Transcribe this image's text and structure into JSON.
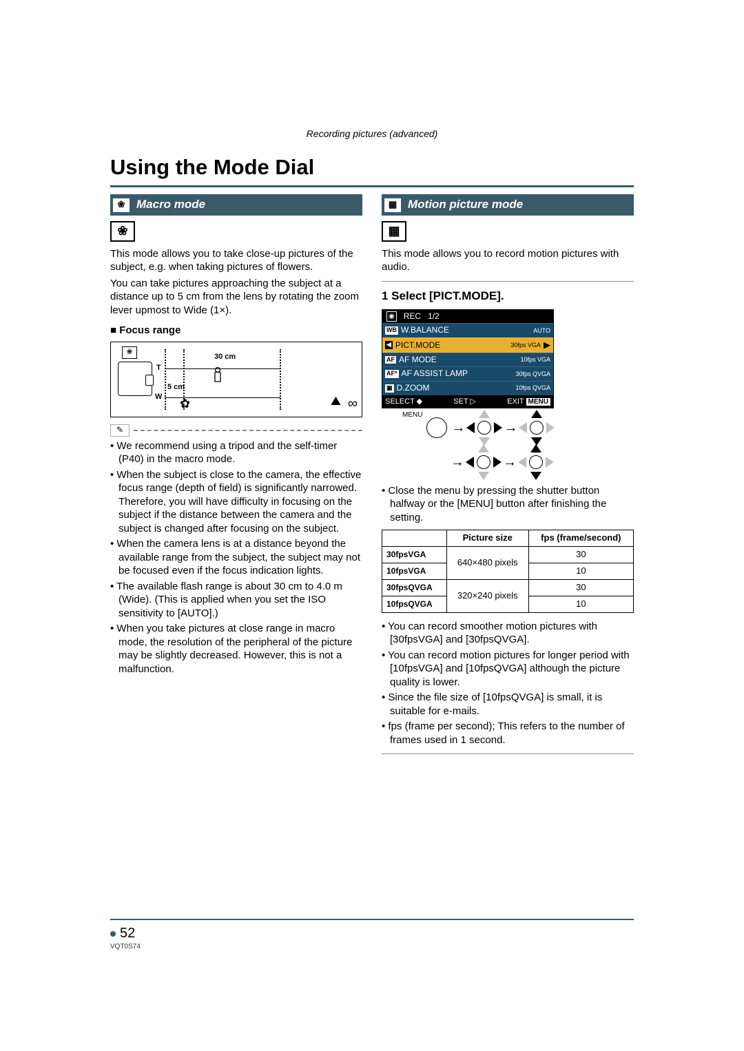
{
  "header_caption": "Recording pictures (advanced)",
  "main_title": "Using the Mode Dial",
  "page_number": "52",
  "doc_id": "VQT0S74",
  "left": {
    "section_title": "Macro mode",
    "bar_icon": "❀",
    "mode_glyph": "❀",
    "intro1": "This mode allows you to take close-up pictures of the subject, e.g. when taking pictures of flowers.",
    "intro2": "You can take pictures approaching the subject at a distance up to 5 cm from the lens by rotating the zoom lever upmost to Wide (1×).",
    "focus_heading": "Focus range",
    "focus_diagram": {
      "label_30cm": "30 cm",
      "label_5cm": "5 cm",
      "label_T": "T",
      "label_W": "W",
      "infinity": "∞"
    },
    "bullets": [
      "We recommend using a tripod and the self-timer (P40) in the macro mode.",
      "When the subject is close to the camera, the effective focus range (depth of field) is significantly narrowed. Therefore, you will have difficulty in focusing on the subject if the distance between the camera and the subject is changed after focusing on the subject.",
      "When the camera lens is at a distance beyond the available range from the subject, the subject may not be focused even if the focus indication lights.",
      "The available flash range is about 30 cm to 4.0 m (Wide). (This is applied when you set the ISO sensitivity to [AUTO].)",
      "When you take pictures at close range in macro mode, the resolution of the peripheral of the picture may be slightly decreased. However, this is not a malfunction."
    ]
  },
  "right": {
    "section_title": "Motion picture mode",
    "bar_icon": "▦",
    "mode_glyph": "▦",
    "intro": "This mode allows you to record motion pictures with audio.",
    "step1": "1 Select [PICT.MODE].",
    "lcd": {
      "rec_label": "REC",
      "page": "1/2",
      "rows": [
        {
          "tag": "WB",
          "label": "W.BALANCE",
          "val": "AUTO"
        },
        {
          "tag": "◀",
          "label": "PICT.MODE",
          "val": "30fps VGA",
          "sel": true
        },
        {
          "tag": "AF",
          "label": "AF MODE",
          "val": "10fps VGA"
        },
        {
          "tag": "AF*",
          "label": "AF ASSIST LAMP",
          "val": "30fps QVGA"
        },
        {
          "tag": "▣",
          "label": "D.ZOOM",
          "val": "10fps QVGA"
        }
      ],
      "bottom_select": "SELECT",
      "bottom_set": "SET",
      "bottom_exit": "EXIT",
      "bottom_menu": "MENU",
      "menu_label": "MENU"
    },
    "after_lcd": "Close the menu by pressing the shutter button halfway or the [MENU] button after finishing the setting.",
    "table": {
      "head_size": "Picture size",
      "head_fps": "fps (frame/second)",
      "rows": [
        {
          "name": "30fpsVGA",
          "size": "640×480 pixels",
          "fps": "30",
          "rowspan_size": true
        },
        {
          "name": "10fpsVGA",
          "size": "",
          "fps": "10"
        },
        {
          "name": "30fpsQVGA",
          "size": "320×240 pixels",
          "fps": "30",
          "rowspan_size": true
        },
        {
          "name": "10fpsQVGA",
          "size": "",
          "fps": "10"
        }
      ]
    },
    "bullets": [
      "You can record smoother motion pictures with [30fpsVGA] and [30fpsQVGA].",
      "You can record motion pictures for longer period with [10fpsVGA] and [10fpsQVGA] although the picture quality is lower.",
      "Since the file size of [10fpsQVGA] is small, it is suitable for e-mails.",
      "fps (frame per second);  This refers to the number of frames used in 1 second."
    ]
  }
}
